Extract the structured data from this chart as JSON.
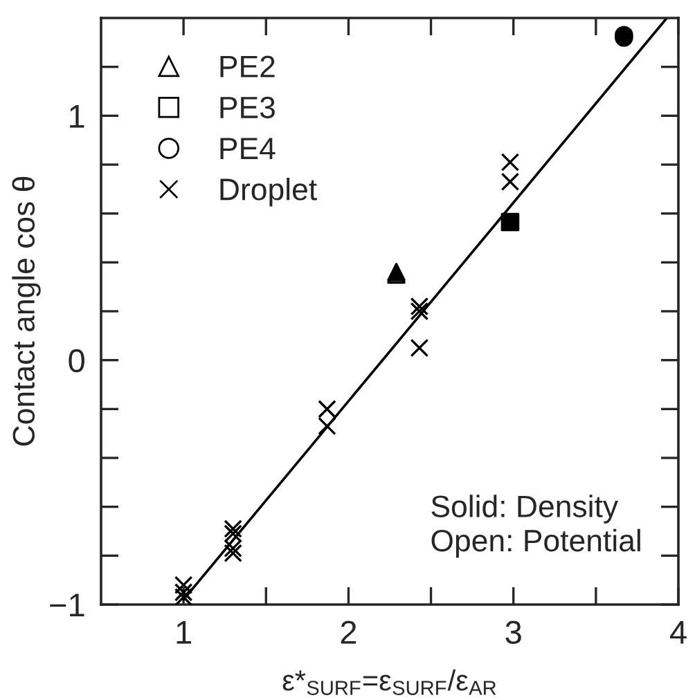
{
  "chart_data": {
    "type": "scatter",
    "xlabel": "ε*$_{SURF}$=ε$_{SURF}$/ε$_{AR}$",
    "ylabel": "Contact angle cos θ",
    "annotations": [
      "Solid: Density\nOpen: Potential"
    ],
    "xlim": [
      0.5,
      4
    ],
    "ylim": [
      -1,
      1.4
    ],
    "xticks": [
      1,
      {
        "value": 1.5,
        "label": null
      },
      2,
      {
        "value": 2.5,
        "label": null
      },
      3,
      {
        "value": 3.5,
        "label": null
      },
      4
    ],
    "yticks": [
      {
        "value": -1,
        "label": "−1"
      },
      {
        "value": -0.8,
        "label": null
      },
      {
        "value": -0.6,
        "label": null
      },
      {
        "value": -0.4,
        "label": null
      },
      {
        "value": -0.2,
        "label": null
      },
      0,
      {
        "value": 0.2,
        "label": null
      },
      {
        "value": 0.4,
        "label": null
      },
      {
        "value": 0.6,
        "label": null
      },
      {
        "value": 0.8,
        "label": null
      },
      1,
      {
        "value": 1.2,
        "label": null
      }
    ],
    "grid": false,
    "legend": "top left",
    "series": [
      {
        "name": "PE2",
        "color": "#000000",
        "marker": "triangle",
        "x": [
          2.29
        ],
        "values": [
          0.35
        ]
      },
      {
        "name": "PE3",
        "color": "#000000",
        "marker": "square"
      },
      {
        "name": "PE4",
        "color": "#000000",
        "marker": "circle",
        "x": [
          3.67
        ],
        "values": [
          1.32
        ]
      },
      {
        "name": "Droplet",
        "color": "#000000",
        "marker": "cross",
        "x": [
          2.98,
          2.98,
          2.43,
          2.43,
          2.43,
          1.87,
          1.87,
          1.3,
          1.3,
          1.3,
          1.3,
          1.0,
          1.0,
          1.0
        ],
        "values": [
          0.81,
          0.73,
          0.22,
          0.2,
          0.05,
          -0.2,
          -0.27,
          -0.69,
          -0.71,
          -0.77,
          -0.79,
          -0.92,
          -0.95,
          -0.97
        ]
      },
      {
        "color": "#000000",
        "marker": "triangle",
        "x": [
          2.29
        ],
        "values": [
          0.36
        ]
      },
      {
        "color": "#000000",
        "marker": "square",
        "x": [
          2.98
        ],
        "values": [
          0.565
        ]
      },
      {
        "color": "#000000",
        "marker": "circle",
        "x": [
          3.67
        ],
        "values": [
          1.33
        ]
      },
      {
        "type": "line",
        "color": "#000000",
        "x": [
          1.0,
          3.93
        ],
        "values": [
          -0.98,
          1.4
        ]
      }
    ]
  }
}
